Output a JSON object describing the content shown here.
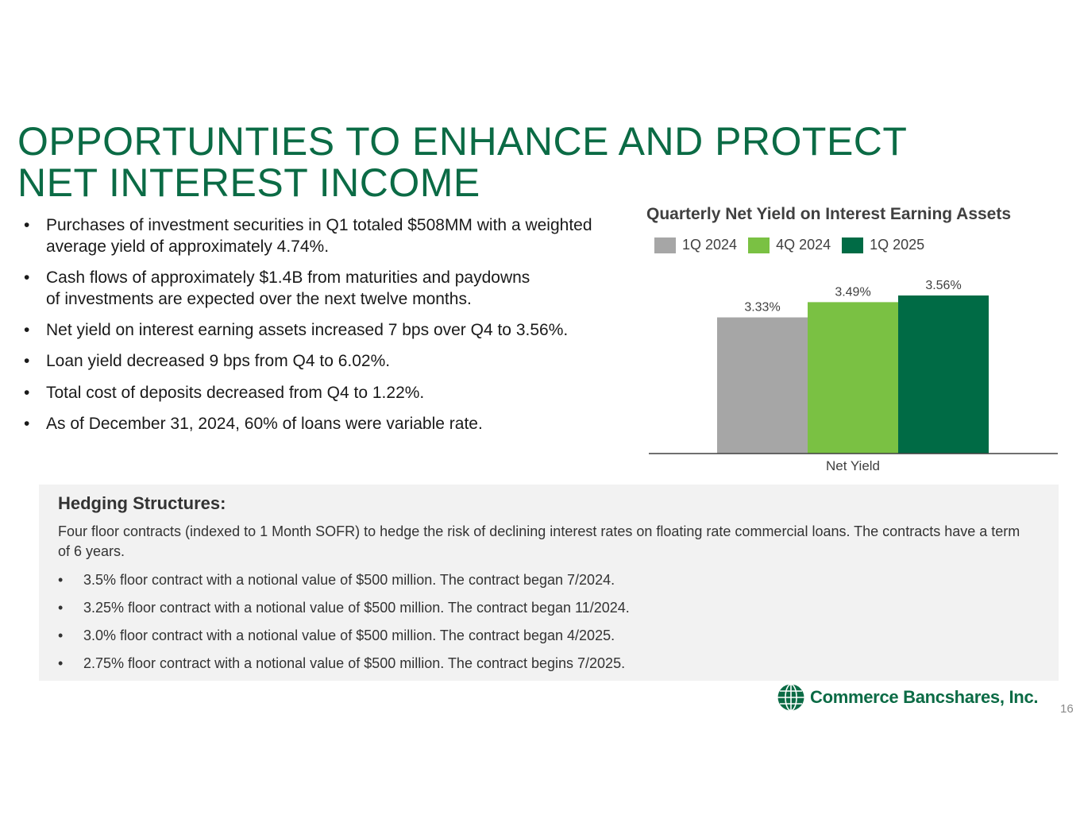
{
  "title": {
    "line1": "OPPORTUNTIES TO ENHANCE AND PROTECT",
    "line2": "NET INTEREST INCOME"
  },
  "bullets": [
    "Purchases of investment securities in Q1 totaled $508MM with a weighted average yield of approximately 4.74%.",
    "Cash flows of approximately $1.4B from maturities and paydowns of investments are expected over the next twelve months.",
    "Net yield on interest earning assets increased 7 bps over Q4 to 3.56%.",
    "Loan yield decreased 9 bps from Q4 to 6.02%.",
    "Total cost of deposits decreased from Q4 to 1.22%.",
    "As of December 31, 2024, 60% of loans were variable rate."
  ],
  "chart_data": {
    "type": "bar",
    "title": "Quarterly Net Yield on Interest Earning Assets",
    "categories": [
      "Net Yield"
    ],
    "series": [
      {
        "name": "1Q 2024",
        "values": [
          3.33
        ],
        "label": "3.33%",
        "color": "#a6a6a6"
      },
      {
        "name": "4Q 2024",
        "values": [
          3.49
        ],
        "label": "3.49%",
        "color": "#7ac143"
      },
      {
        "name": "1Q 2025",
        "values": [
          3.56
        ],
        "label": "3.56%",
        "color": "#006b45"
      }
    ],
    "xlabel": "",
    "ylabel": "",
    "ylim": [
      1.9,
      3.56
    ],
    "grid": false,
    "legend": "top"
  },
  "hedging": {
    "heading": "Hedging Structures:",
    "intro": "Four floor contracts (indexed to 1 Month SOFR) to hedge the risk of declining interest rates on floating rate commercial loans. The contracts have a term of 6 years.",
    "items": [
      "3.5% floor contract with a notional value of $500 million. The contract began 7/2024.",
      "3.25% floor contract with a notional value of $500 million. The contract began 11/2024.",
      "3.0% floor contract with a notional value of $500 million. The contract began 4/2025.",
      "2.75% floor contract with a notional value of $500 million. The contract begins 7/2025."
    ]
  },
  "footer": {
    "logo_text": "Commerce Bancshares, Inc.",
    "page_number": "16"
  },
  "colors": {
    "brand_green": "#0b6b45",
    "panel_bg": "#f2f2f2"
  }
}
